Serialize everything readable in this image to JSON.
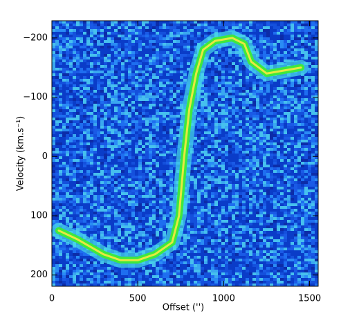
{
  "chart_data": {
    "type": "line",
    "x_label": "Offset ('')",
    "y_label": "Velocity (km.s⁻¹)",
    "x": [
      40,
      150,
      300,
      400,
      500,
      600,
      700,
      740,
      770,
      800,
      840,
      880,
      950,
      1050,
      1120,
      1160,
      1250,
      1450
    ],
    "values": [
      125,
      140,
      165,
      175,
      175,
      165,
      145,
      100,
      0,
      -80,
      -140,
      -180,
      -195,
      -200,
      -190,
      -160,
      -140,
      -150
    ],
    "color": "#3ee83e",
    "xlim": [
      0,
      1550
    ],
    "ylim": [
      219,
      -229
    ],
    "xticks": [
      0,
      500,
      1000,
      1500
    ],
    "yticks": [
      {
        "value": -200,
        "label": "−200"
      },
      {
        "value": -100,
        "label": "−100"
      },
      0,
      100,
      200
    ]
  }
}
